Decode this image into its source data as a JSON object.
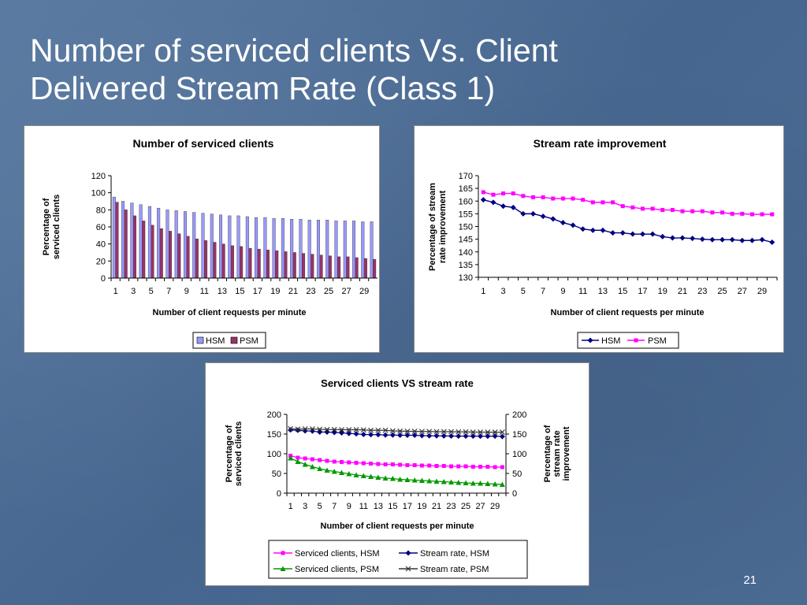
{
  "slide": {
    "title_lines": [
      "Number of serviced clients Vs. Client",
      "Delivered Stream Rate (Class 1)"
    ],
    "page_number": "21"
  },
  "colors": {
    "hsm_bar": "#9999ff",
    "psm_bar": "#993366",
    "hsm_line": "#000080",
    "psm_line": "#ff00ff",
    "serviced_psm": "#009900",
    "stream_psm": "#333333"
  },
  "chart_data": [
    {
      "type": "bar",
      "title": "Number of serviced clients",
      "xlabel": "Number of client requests per minute",
      "ylabel": "Percentage of serviced clients",
      "ylim": [
        0,
        120
      ],
      "yticks": [
        0,
        20,
        40,
        60,
        80,
        100,
        120
      ],
      "x": [
        1,
        2,
        3,
        4,
        5,
        6,
        7,
        8,
        9,
        10,
        11,
        12,
        13,
        14,
        15,
        16,
        17,
        18,
        19,
        20,
        21,
        22,
        23,
        24,
        25,
        26,
        27,
        28,
        29,
        30
      ],
      "xtick_labels": [
        "1",
        "3",
        "5",
        "7",
        "9",
        "11",
        "13",
        "15",
        "17",
        "19",
        "21",
        "23",
        "25",
        "27",
        "29"
      ],
      "legend_position": "bottom",
      "series": [
        {
          "name": "HSM",
          "values": [
            95,
            90,
            88,
            86,
            84,
            82,
            80,
            79,
            78,
            77,
            76,
            75,
            74,
            73,
            73,
            72,
            71,
            71,
            70,
            70,
            69,
            69,
            68,
            68,
            68,
            67,
            67,
            67,
            66,
            66
          ]
        },
        {
          "name": "PSM",
          "values": [
            89,
            80,
            73,
            67,
            62,
            58,
            55,
            52,
            49,
            46,
            44,
            42,
            40,
            38,
            37,
            35,
            34,
            33,
            32,
            31,
            30,
            29,
            28,
            27,
            26,
            25,
            25,
            24,
            23,
            22
          ]
        }
      ]
    },
    {
      "type": "line",
      "title": "Stream rate improvement",
      "xlabel": "Number of client requests per minute",
      "ylabel": "Percentage of stream rate improvement",
      "ylim": [
        130,
        170
      ],
      "yticks": [
        130,
        135,
        140,
        145,
        150,
        155,
        160,
        165,
        170
      ],
      "x": [
        1,
        2,
        3,
        4,
        5,
        6,
        7,
        8,
        9,
        10,
        11,
        12,
        13,
        14,
        15,
        16,
        17,
        18,
        19,
        20,
        21,
        22,
        23,
        24,
        25,
        26,
        27,
        28,
        29,
        30
      ],
      "xtick_labels": [
        "1",
        "3",
        "5",
        "7",
        "9",
        "11",
        "13",
        "15",
        "17",
        "19",
        "21",
        "23",
        "25",
        "27",
        "29"
      ],
      "legend_position": "bottom",
      "series": [
        {
          "name": "HSM",
          "marker": "diamond",
          "values": [
            160.5,
            159.5,
            158,
            157.5,
            155,
            155,
            154,
            153,
            151.5,
            150.5,
            149,
            148.5,
            148.5,
            147.5,
            147.5,
            147,
            147,
            147,
            146,
            145.5,
            145.5,
            145.3,
            145,
            144.8,
            144.8,
            144.8,
            144.5,
            144.5,
            144.8,
            143.8
          ]
        },
        {
          "name": "PSM",
          "marker": "square",
          "values": [
            163.5,
            162.5,
            163,
            163,
            162,
            161.5,
            161.5,
            161,
            161,
            161,
            160.5,
            159.5,
            159.5,
            159.5,
            158,
            157.5,
            157,
            157,
            156.5,
            156.5,
            156,
            156,
            156,
            155.5,
            155.5,
            155,
            155,
            154.8,
            154.8,
            154.8
          ]
        }
      ]
    },
    {
      "type": "line",
      "title": "Serviced clients VS stream rate",
      "xlabel": "Number of client requests per minute",
      "ylabel_left": "Percentage of serviced clients",
      "ylabel_right": "Percentage of stream rate improvement",
      "ylim": [
        0,
        200
      ],
      "yticks": [
        0,
        50,
        100,
        150,
        200
      ],
      "x": [
        1,
        2,
        3,
        4,
        5,
        6,
        7,
        8,
        9,
        10,
        11,
        12,
        13,
        14,
        15,
        16,
        17,
        18,
        19,
        20,
        21,
        22,
        23,
        24,
        25,
        26,
        27,
        28,
        29,
        30
      ],
      "xtick_labels": [
        "1",
        "3",
        "5",
        "7",
        "9",
        "11",
        "13",
        "15",
        "17",
        "19",
        "21",
        "23",
        "25",
        "27",
        "29"
      ],
      "legend_position": "bottom",
      "series": [
        {
          "name": "Serviced clients, HSM",
          "marker": "square",
          "values": [
            95,
            90,
            88,
            86,
            84,
            82,
            80,
            79,
            78,
            77,
            76,
            75,
            74,
            73,
            73,
            72,
            71,
            71,
            70,
            70,
            69,
            69,
            68,
            68,
            68,
            67,
            67,
            67,
            66,
            66
          ]
        },
        {
          "name": "Stream rate, HSM",
          "marker": "diamond",
          "values": [
            160.5,
            159.5,
            158,
            157.5,
            155,
            155,
            154,
            153,
            151.5,
            150.5,
            149,
            148.5,
            148.5,
            147.5,
            147.5,
            147,
            147,
            147,
            146,
            145.5,
            145.5,
            145.3,
            145,
            144.8,
            144.8,
            144.8,
            144.5,
            144.5,
            144.8,
            143.8
          ]
        },
        {
          "name": "Serviced clients, PSM",
          "marker": "triangle",
          "values": [
            89,
            80,
            73,
            67,
            62,
            58,
            55,
            52,
            49,
            46,
            44,
            42,
            40,
            38,
            37,
            35,
            34,
            33,
            32,
            31,
            30,
            29,
            28,
            27,
            26,
            25,
            25,
            24,
            23,
            22
          ]
        },
        {
          "name": "Stream rate, PSM",
          "marker": "x",
          "values": [
            163.5,
            162.5,
            163,
            163,
            162,
            161.5,
            161.5,
            161,
            161,
            161,
            160.5,
            159.5,
            159.5,
            159.5,
            158,
            157.5,
            157,
            157,
            156.5,
            156.5,
            156,
            156,
            156,
            155.5,
            155.5,
            155,
            155,
            154.8,
            154.8,
            154.8
          ]
        }
      ]
    }
  ]
}
